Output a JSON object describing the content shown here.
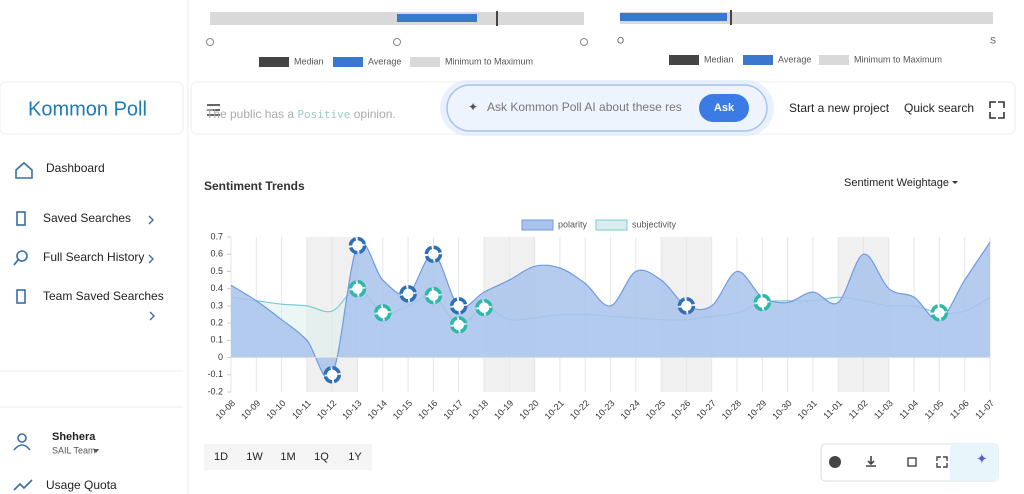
{
  "sidebar": {
    "brand": "Kommon Poll",
    "nav": [
      "Dashboard",
      "Saved Searches",
      "Full Search History",
      "Team Saved Searches"
    ],
    "user": {
      "name": "Shehera",
      "team": "SAIL Team"
    },
    "quota": "Usage Quota"
  },
  "gauges": {
    "left_legend": [
      "Median",
      "Average",
      "Minimum to Maximum"
    ],
    "right_legend": [
      "Median",
      "Average",
      "Minimum to Maximum"
    ],
    "right_ends": [
      "O",
      "S"
    ]
  },
  "header": {
    "sentence": [
      "The public has a",
      "Positive",
      "opinion."
    ],
    "ai_placeholder": "Ask Kommon Poll AI about these res",
    "ask": "Ask",
    "links": [
      "Start a new project",
      "Quick search"
    ]
  },
  "chart_data": {
    "type": "area",
    "title": "Sentiment Trends",
    "dropdown": "Sentiment Weightage",
    "categories": [
      "10-08",
      "10-09",
      "10-10",
      "10-11",
      "10-12",
      "10-13",
      "10-14",
      "10-15",
      "10-16",
      "10-17",
      "10-18",
      "10-19",
      "10-20",
      "10-21",
      "10-22",
      "10-23",
      "10-24",
      "10-25",
      "10-26",
      "10-27",
      "10-28",
      "10-29",
      "10-30",
      "10-31",
      "11-01",
      "11-02",
      "11-03",
      "11-04",
      "11-05",
      "11-06",
      "11-07"
    ],
    "series": [
      {
        "name": "polarity",
        "color": "#6f9be0",
        "values": [
          0.42,
          0.33,
          0.22,
          0.1,
          -0.1,
          0.65,
          0.45,
          0.37,
          0.6,
          0.3,
          0.38,
          0.45,
          0.53,
          0.52,
          0.43,
          0.3,
          0.5,
          0.45,
          0.3,
          0.3,
          0.5,
          0.35,
          0.32,
          0.38,
          0.32,
          0.6,
          0.4,
          0.35,
          0.22,
          0.45,
          0.67
        ]
      },
      {
        "name": "subjectivity",
        "color": "#7ccbd4",
        "values": [
          0.35,
          0.33,
          0.31,
          0.3,
          0.27,
          0.4,
          0.26,
          0.3,
          0.36,
          0.19,
          0.29,
          0.22,
          0.23,
          0.25,
          0.25,
          0.24,
          0.23,
          0.22,
          0.22,
          0.24,
          0.26,
          0.32,
          0.33,
          0.33,
          0.35,
          0.33,
          0.3,
          0.3,
          0.26,
          0.27,
          0.35
        ]
      }
    ],
    "ylim": [
      -0.2,
      0.7
    ],
    "yticks": [
      -0.2,
      -0.1,
      0,
      0.1,
      0.2,
      0.3,
      0.4,
      0.5,
      0.6,
      0.7
    ],
    "grid": true
  },
  "ranges": [
    "1D",
    "1W",
    "1M",
    "1Q",
    "1Y"
  ]
}
